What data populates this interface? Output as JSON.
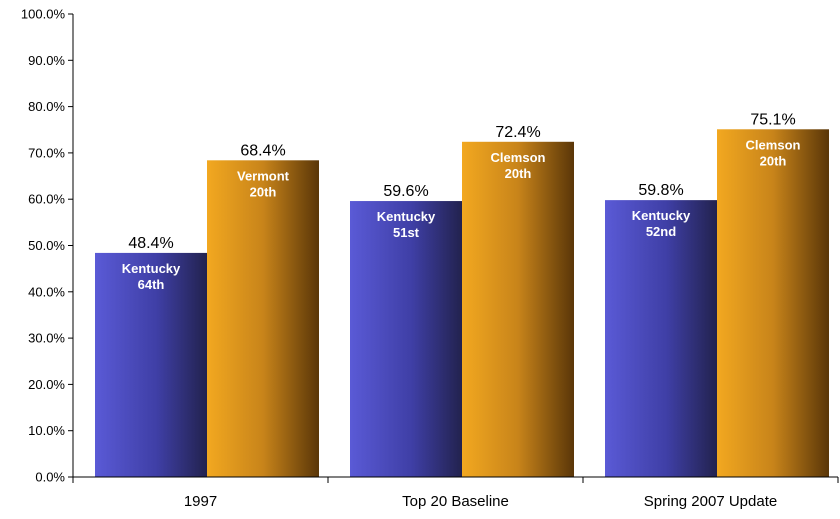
{
  "chart_data": {
    "type": "bar",
    "categories": [
      "1997",
      "Top 20 Baseline",
      "Spring 2007 Update"
    ],
    "series": [
      {
        "color": "#5050c8",
        "values": [
          48.4,
          59.6,
          59.8
        ],
        "value_labels": [
          "48.4%",
          "59.6%",
          "59.8%"
        ],
        "bar_labels": [
          [
            "Kentucky",
            "64th"
          ],
          [
            "Kentucky",
            "51st"
          ],
          [
            "Kentucky",
            "52nd"
          ]
        ]
      },
      {
        "color": "#e8a020",
        "values": [
          68.4,
          72.4,
          75.1
        ],
        "value_labels": [
          "68.4%",
          "72.4%",
          "75.1%"
        ],
        "bar_labels": [
          [
            "Vermont",
            "20th"
          ],
          [
            "Clemson",
            "20th"
          ],
          [
            "Clemson",
            "20th"
          ]
        ]
      }
    ],
    "ylim": [
      0,
      100
    ],
    "yticks": [
      "0.0%",
      "10.0%",
      "20.0%",
      "30.0%",
      "40.0%",
      "50.0%",
      "60.0%",
      "70.0%",
      "80.0%",
      "90.0%",
      "100.0%"
    ],
    "title": "",
    "xlabel": "",
    "ylabel": "",
    "grid": false,
    "legend": "none"
  }
}
